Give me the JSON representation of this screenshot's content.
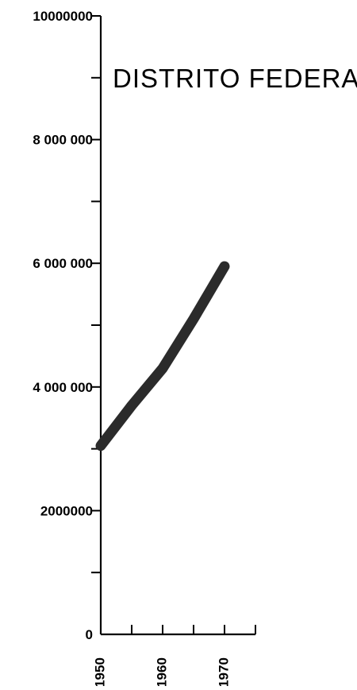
{
  "chart_data": {
    "type": "line",
    "title": "DISTRITO FEDERAL",
    "xlabel": "",
    "ylabel": "",
    "x_ticks": [
      "1950",
      "1960",
      "1970"
    ],
    "y_ticks": [
      "0",
      "2000000",
      "4 000 000",
      "6 000 000",
      "8 000 000",
      "10000000"
    ],
    "xlim": [
      1950,
      1975
    ],
    "ylim": [
      0,
      10000000
    ],
    "y_minor_step": 1000000,
    "x_minor_step": 5,
    "grid": false,
    "series": [
      {
        "points": [
          {
            "x": 1950,
            "y": 3050000
          },
          {
            "x": 1955,
            "y": 3700000
          },
          {
            "x": 1960,
            "y": 4300000
          },
          {
            "x": 1965,
            "y": 5100000
          },
          {
            "x": 1970,
            "y": 5950000
          }
        ]
      }
    ],
    "colors": {
      "line": "#2b2b2b",
      "axis": "#000000",
      "text": "#000000"
    }
  }
}
